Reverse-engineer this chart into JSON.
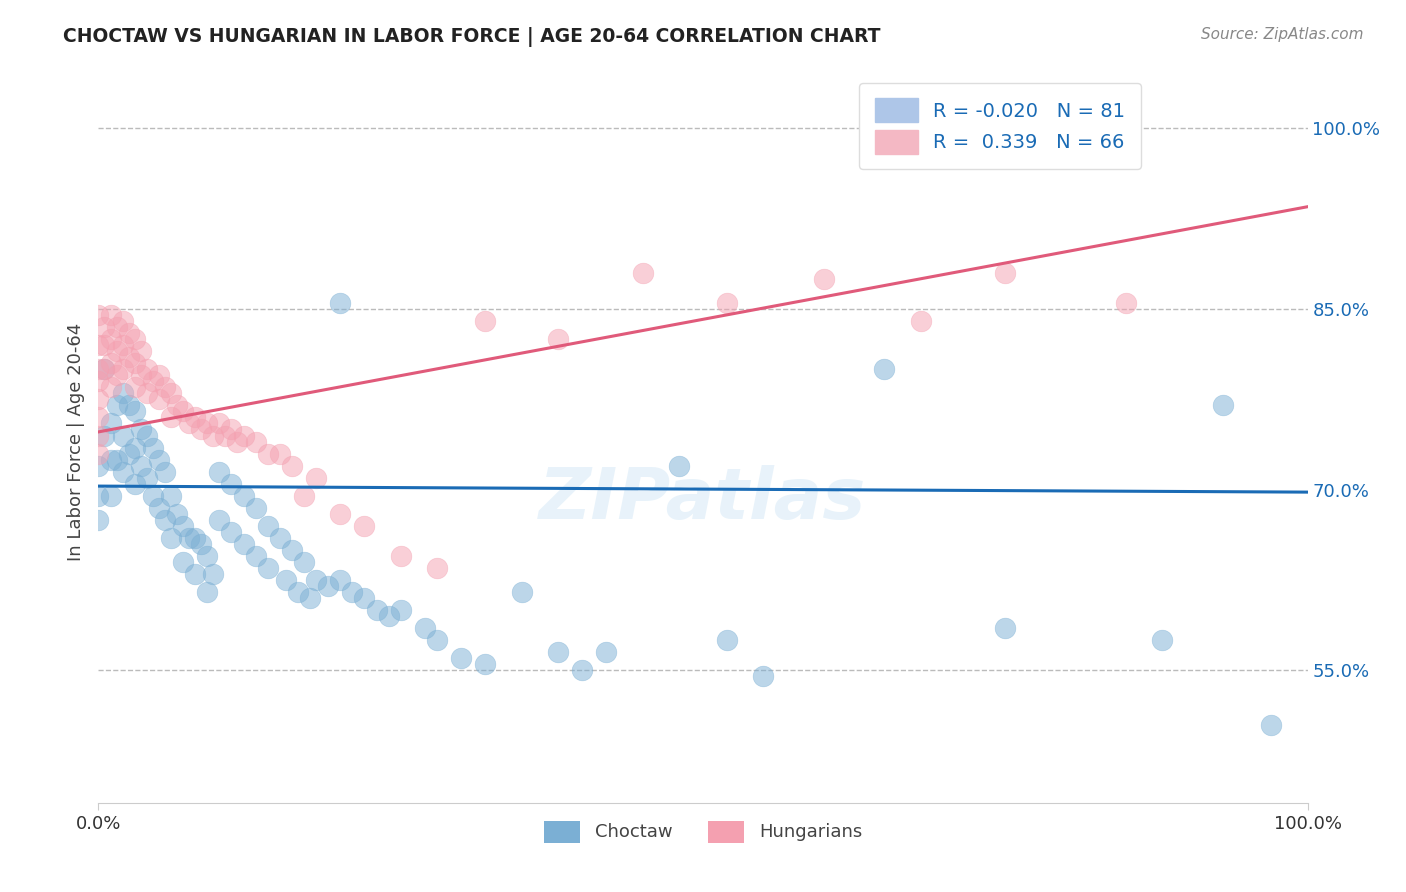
{
  "title": "CHOCTAW VS HUNGARIAN IN LABOR FORCE | AGE 20-64 CORRELATION CHART",
  "source": "Source: ZipAtlas.com",
  "ylabel": "In Labor Force | Age 20-64",
  "xlim": [
    0.0,
    1.0
  ],
  "ylim": [
    0.44,
    1.04
  ],
  "right_yticks": [
    0.55,
    0.7,
    0.85,
    1.0
  ],
  "right_yticklabels": [
    "55.0%",
    "70.0%",
    "85.0%",
    "100.0%"
  ],
  "R_blue": -0.02,
  "N_blue": 81,
  "R_pink": 0.339,
  "N_pink": 66,
  "blue_color": "#7bafd4",
  "pink_color": "#f4a0b0",
  "blue_line_color": "#1a6bb5",
  "pink_line_color": "#e05a7a",
  "blue_line_y0": 0.703,
  "blue_line_y1": 0.698,
  "pink_line_y0": 0.748,
  "pink_line_y1": 0.935,
  "blue_scatter_x": [
    0.0,
    0.0,
    0.0,
    0.005,
    0.005,
    0.01,
    0.01,
    0.01,
    0.015,
    0.015,
    0.02,
    0.02,
    0.02,
    0.025,
    0.025,
    0.03,
    0.03,
    0.03,
    0.035,
    0.035,
    0.04,
    0.04,
    0.045,
    0.045,
    0.05,
    0.05,
    0.055,
    0.055,
    0.06,
    0.06,
    0.065,
    0.07,
    0.07,
    0.075,
    0.08,
    0.08,
    0.085,
    0.09,
    0.09,
    0.095,
    0.1,
    0.1,
    0.11,
    0.11,
    0.12,
    0.12,
    0.13,
    0.13,
    0.14,
    0.14,
    0.15,
    0.155,
    0.16,
    0.165,
    0.17,
    0.175,
    0.18,
    0.19,
    0.2,
    0.2,
    0.21,
    0.22,
    0.23,
    0.24,
    0.25,
    0.27,
    0.28,
    0.3,
    0.32,
    0.35,
    0.38,
    0.4,
    0.42,
    0.48,
    0.52,
    0.55,
    0.65,
    0.75,
    0.88,
    0.93,
    0.97
  ],
  "blue_scatter_y": [
    0.72,
    0.695,
    0.675,
    0.8,
    0.745,
    0.755,
    0.725,
    0.695,
    0.77,
    0.725,
    0.78,
    0.745,
    0.715,
    0.77,
    0.73,
    0.765,
    0.735,
    0.705,
    0.75,
    0.72,
    0.745,
    0.71,
    0.735,
    0.695,
    0.725,
    0.685,
    0.715,
    0.675,
    0.695,
    0.66,
    0.68,
    0.67,
    0.64,
    0.66,
    0.66,
    0.63,
    0.655,
    0.645,
    0.615,
    0.63,
    0.715,
    0.675,
    0.705,
    0.665,
    0.695,
    0.655,
    0.685,
    0.645,
    0.67,
    0.635,
    0.66,
    0.625,
    0.65,
    0.615,
    0.64,
    0.61,
    0.625,
    0.62,
    0.855,
    0.625,
    0.615,
    0.61,
    0.6,
    0.595,
    0.6,
    0.585,
    0.575,
    0.56,
    0.555,
    0.615,
    0.565,
    0.55,
    0.565,
    0.72,
    0.575,
    0.545,
    0.8,
    0.585,
    0.575,
    0.77,
    0.505
  ],
  "pink_scatter_x": [
    0.0,
    0.0,
    0.0,
    0.0,
    0.0,
    0.0,
    0.0,
    0.0,
    0.005,
    0.005,
    0.005,
    0.01,
    0.01,
    0.01,
    0.01,
    0.015,
    0.015,
    0.015,
    0.02,
    0.02,
    0.02,
    0.025,
    0.025,
    0.03,
    0.03,
    0.03,
    0.035,
    0.035,
    0.04,
    0.04,
    0.045,
    0.05,
    0.05,
    0.055,
    0.06,
    0.06,
    0.065,
    0.07,
    0.075,
    0.08,
    0.085,
    0.09,
    0.095,
    0.1,
    0.105,
    0.11,
    0.115,
    0.12,
    0.13,
    0.14,
    0.15,
    0.16,
    0.17,
    0.18,
    0.2,
    0.22,
    0.25,
    0.28,
    0.32,
    0.38,
    0.45,
    0.52,
    0.6,
    0.68,
    0.75,
    0.85
  ],
  "pink_scatter_y": [
    0.8,
    0.82,
    0.845,
    0.79,
    0.775,
    0.76,
    0.745,
    0.73,
    0.835,
    0.82,
    0.8,
    0.845,
    0.825,
    0.805,
    0.785,
    0.835,
    0.815,
    0.795,
    0.84,
    0.82,
    0.8,
    0.83,
    0.81,
    0.825,
    0.805,
    0.785,
    0.815,
    0.795,
    0.8,
    0.78,
    0.79,
    0.795,
    0.775,
    0.785,
    0.78,
    0.76,
    0.77,
    0.765,
    0.755,
    0.76,
    0.75,
    0.755,
    0.745,
    0.755,
    0.745,
    0.75,
    0.74,
    0.745,
    0.74,
    0.73,
    0.73,
    0.72,
    0.695,
    0.71,
    0.68,
    0.67,
    0.645,
    0.635,
    0.84,
    0.825,
    0.88,
    0.855,
    0.875,
    0.84,
    0.88,
    0.855
  ]
}
